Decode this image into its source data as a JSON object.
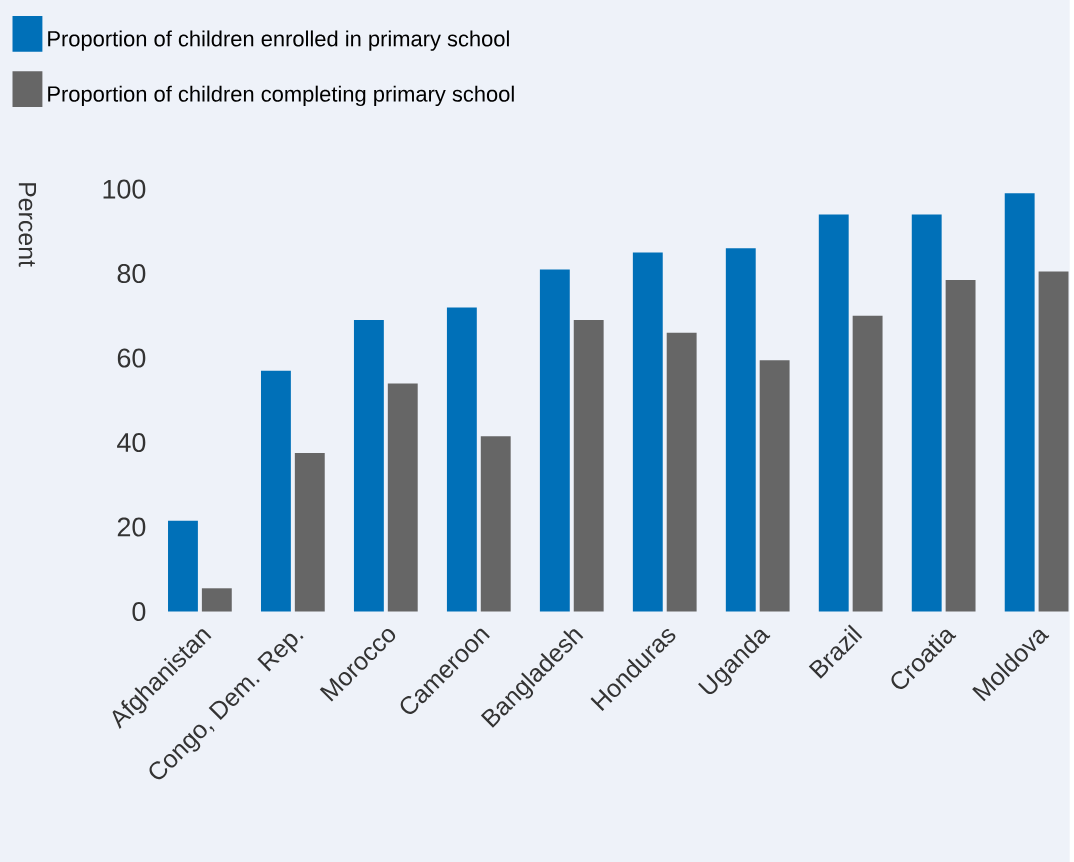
{
  "chart_data": {
    "type": "bar",
    "ylabel": "Percent",
    "categories": [
      "Afghanistan",
      "Congo, Dem. Rep.",
      "Morocco",
      "Cameroon",
      "Bangladesh",
      "Honduras",
      "Uganda",
      "Brazil",
      "Croatia",
      "Moldova"
    ],
    "series": [
      {
        "name": "Proportion of children enrolled in primary school",
        "color": "#0070b8",
        "values": [
          21.5,
          57,
          69,
          72,
          81,
          85,
          86,
          94,
          94,
          99
        ]
      },
      {
        "name": "Proportion of children completing primary school",
        "color": "#666666",
        "values": [
          5.5,
          37.5,
          54,
          41.5,
          69,
          66,
          59.5,
          70,
          78.5,
          80.5
        ]
      }
    ],
    "ylim": [
      0,
      100
    ],
    "yticks": [
      0,
      20,
      40,
      60,
      80,
      100
    ],
    "grid": false,
    "legend": "top left"
  }
}
